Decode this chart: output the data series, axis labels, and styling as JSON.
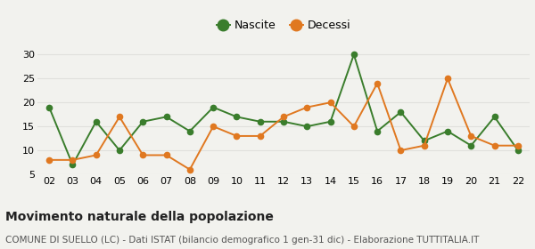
{
  "years": [
    "02",
    "03",
    "04",
    "05",
    "06",
    "07",
    "08",
    "09",
    "10",
    "11",
    "12",
    "13",
    "14",
    "15",
    "16",
    "17",
    "18",
    "19",
    "20",
    "21",
    "22"
  ],
  "nascite": [
    19,
    7,
    16,
    10,
    16,
    17,
    14,
    19,
    17,
    16,
    16,
    15,
    16,
    30,
    14,
    18,
    12,
    14,
    11,
    17,
    10
  ],
  "decessi": [
    8,
    8,
    9,
    17,
    9,
    9,
    6,
    15,
    13,
    13,
    17,
    19,
    20,
    15,
    24,
    10,
    11,
    25,
    13,
    11,
    11
  ],
  "nascite_color": "#3a7d2c",
  "decessi_color": "#e07820",
  "title": "Movimento naturale della popolazione",
  "subtitle": "COMUNE DI SUELLO (LC) - Dati ISTAT (bilancio demografico 1 gen-31 dic) - Elaborazione TUTTITALIA.IT",
  "ylim": [
    5,
    31
  ],
  "yticks": [
    5,
    10,
    15,
    20,
    25,
    30
  ],
  "background_color": "#f2f2ee",
  "grid_color": "#e0e0dc",
  "legend_nascite": "Nascite",
  "legend_decessi": "Decessi",
  "title_fontsize": 10,
  "subtitle_fontsize": 7.5,
  "tick_fontsize": 8,
  "legend_fontsize": 9
}
